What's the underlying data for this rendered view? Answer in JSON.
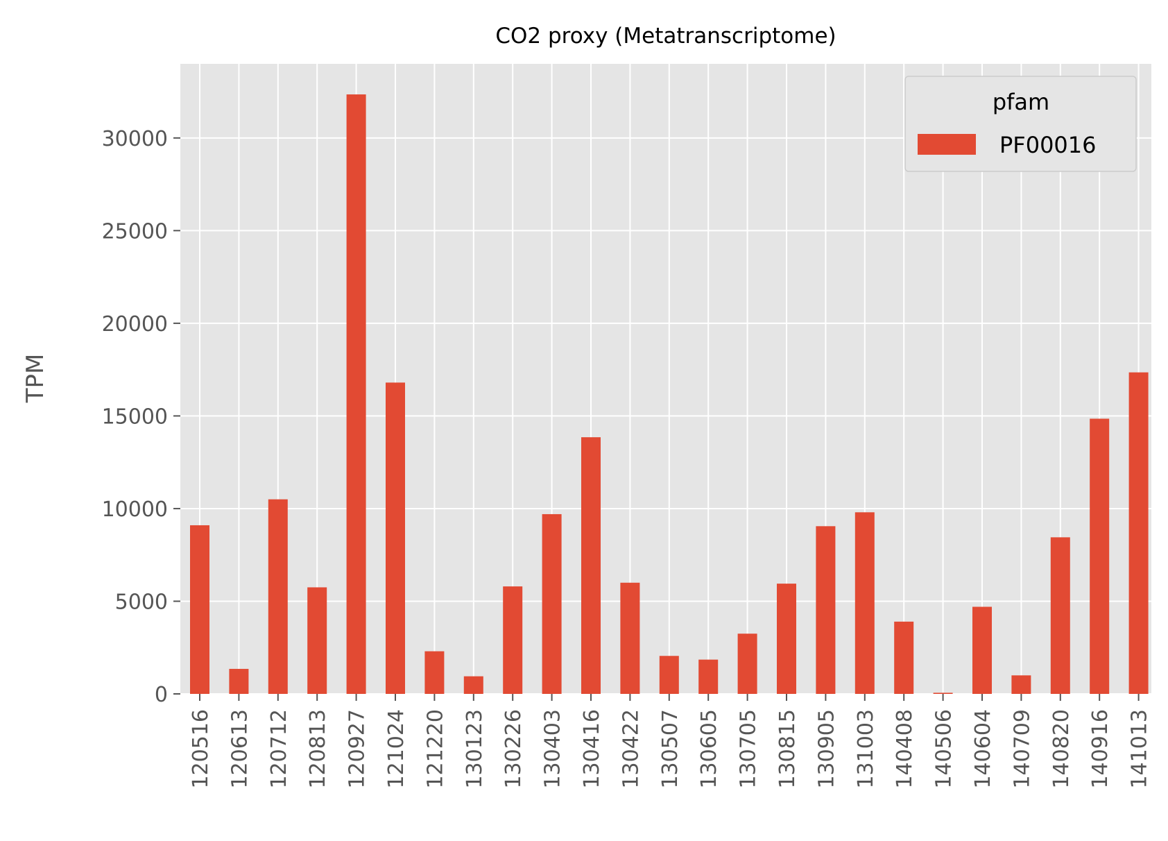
{
  "chart_data": {
    "type": "bar",
    "title": "CO2 proxy (Metatranscriptome)",
    "xlabel": "",
    "ylabel": "TPM",
    "ylim": [
      0,
      34000
    ],
    "yticks": [
      0,
      5000,
      10000,
      15000,
      20000,
      25000,
      30000
    ],
    "grid": true,
    "legend_position": "top-right",
    "legend_title": "pfam",
    "categories": [
      "120516",
      "120613",
      "120712",
      "120813",
      "120927",
      "121024",
      "121220",
      "130123",
      "130226",
      "130403",
      "130416",
      "130422",
      "130507",
      "130605",
      "130705",
      "130815",
      "130905",
      "131003",
      "140408",
      "140506",
      "140604",
      "140709",
      "140820",
      "140916",
      "141013"
    ],
    "series": [
      {
        "name": "PF00016",
        "color": "#E24A33",
        "values": [
          9100,
          1350,
          10500,
          5750,
          32350,
          16800,
          2300,
          950,
          5800,
          9700,
          13850,
          6000,
          2050,
          1850,
          3250,
          5950,
          9050,
          9800,
          3900,
          60,
          4700,
          1000,
          8450,
          14850,
          17350
        ]
      }
    ],
    "colors": {
      "plot_background": "#E5E5E5",
      "grid": "#FFFFFF",
      "tick_text": "#555555"
    }
  }
}
